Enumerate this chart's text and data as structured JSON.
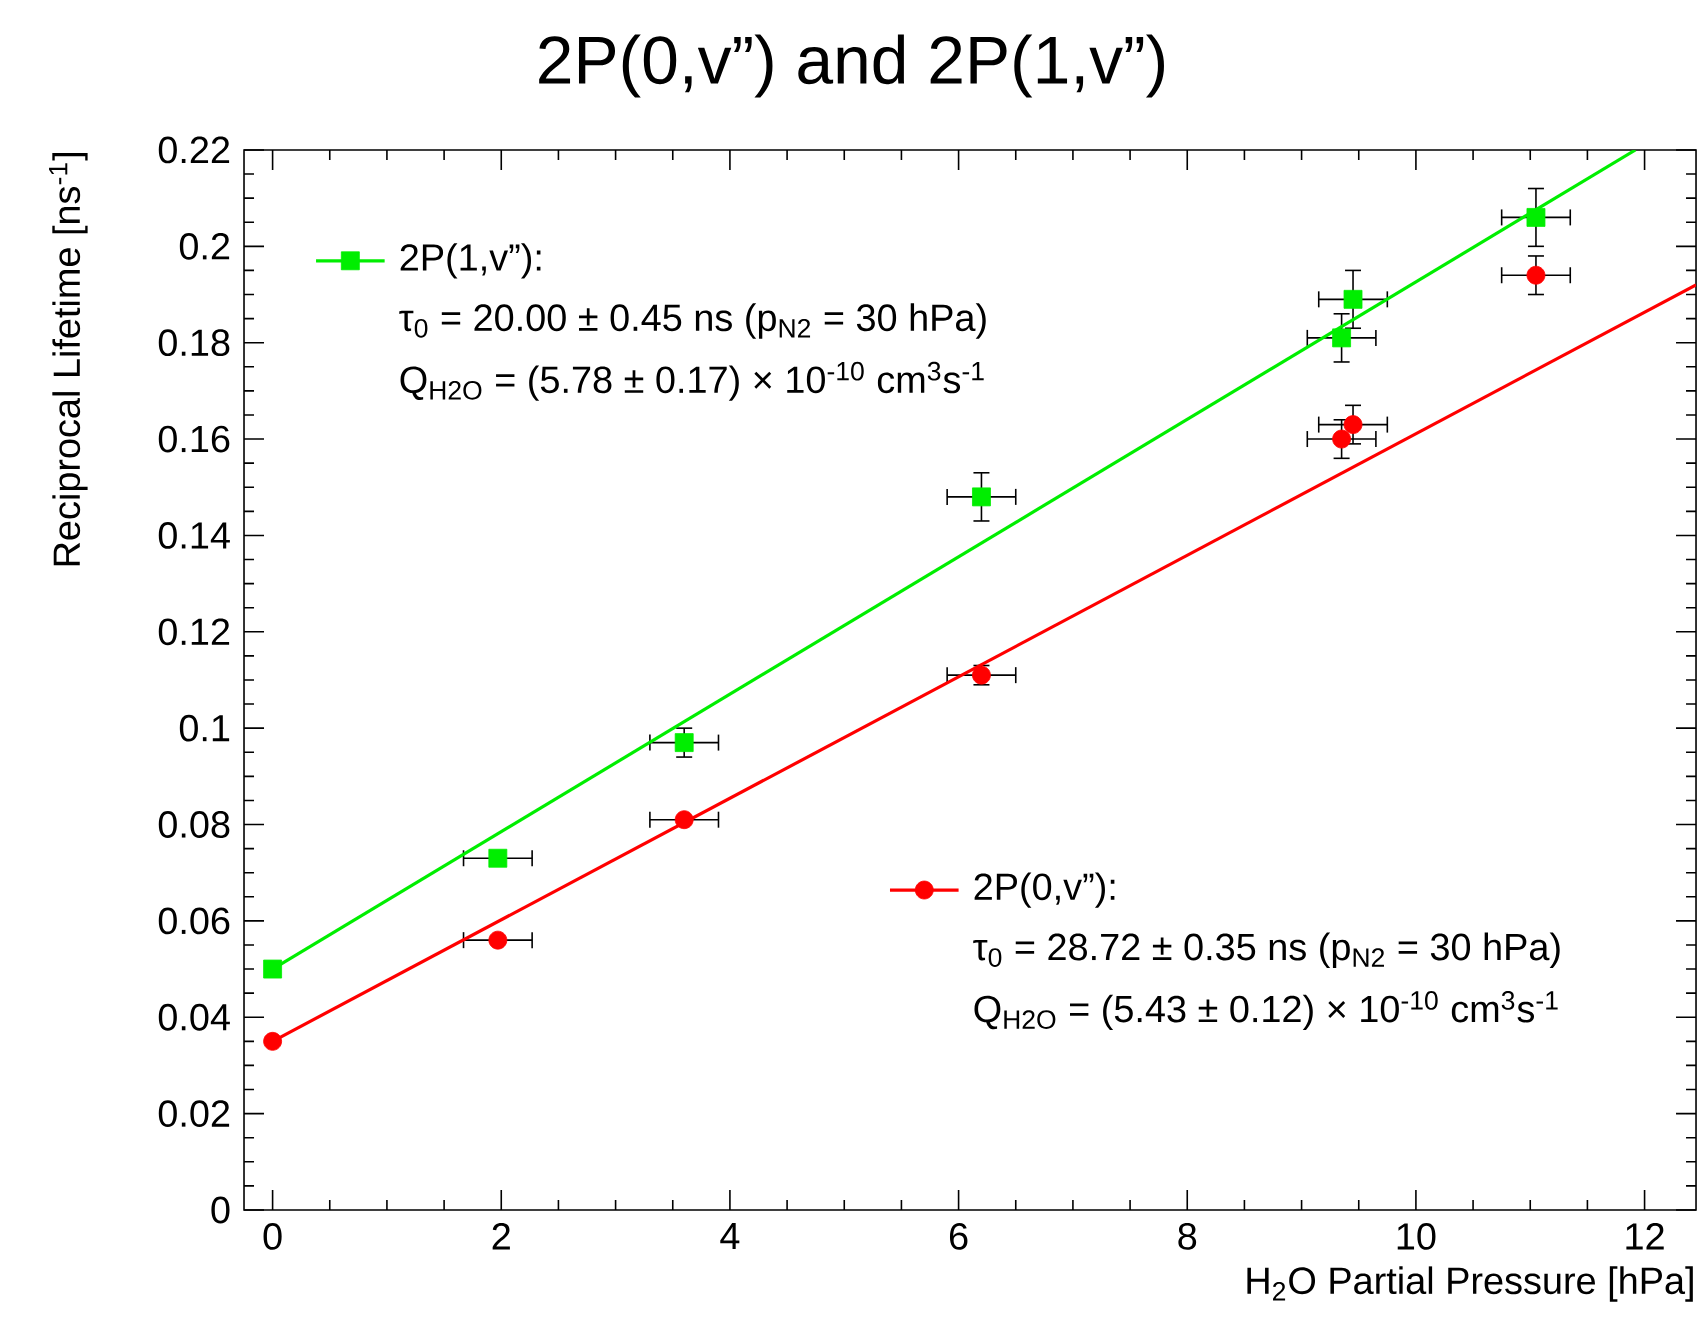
{
  "chart_data": {
    "type": "scatter",
    "title": "2P(0,v”) and 2P(1,v”)",
    "legend": "top left",
    "xlabel": "H$_{2}$O Partial Pressure [hPa]",
    "ylabel": "Reciprocal Lifetime [ns$^{-1}$]",
    "xlim": [
      -0.25,
      12.45
    ],
    "ylim": [
      0,
      0.22
    ],
    "xticks": [
      0,
      2,
      4,
      6,
      8,
      10,
      12
    ],
    "yticks": [
      0,
      0.02,
      0.04,
      0.06,
      0.08,
      0.1,
      0.12,
      0.14,
      0.16,
      0.18,
      0.2,
      0.22
    ],
    "annotations": [
      "τ$_{0}$ = 20.00 ± 0.45 ns (p$_{N2}$ = 30 hPa)",
      "Q$_{H2O}$ = (5.78 ± 0.17) × 10$^{-10}$ cm$^{3}$s$^{-1}$",
      "τ$_{0}$ = 28.72 ± 0.35 ns (p$_{N2}$ = 30 hPa)",
      "Q$_{H2O}$ = (5.43 ± 0.12) × 10$^{-10}$ cm$^{3}$s$^{-1}$"
    ],
    "series": [
      {
        "name": "2P(0,v”):",
        "marker": "circle",
        "color": "#ff0000",
        "x": [
          0,
          1.97,
          3.6,
          6.2,
          9.35,
          9.45,
          11.05
        ],
        "values": [
          0.035,
          0.056,
          0.081,
          0.111,
          0.16,
          0.163,
          0.194
        ],
        "errors": [
          null,
          null,
          null,
          0.002,
          0.004,
          0.004,
          0.004
        ],
        "xerrors": [
          null,
          0.3,
          0.3,
          0.3,
          0.3,
          0.3,
          0.3
        ]
      },
      {
        "name": "2P(1,v”):",
        "marker": "square",
        "color": "#00ee00",
        "x": [
          0,
          1.97,
          3.6,
          6.2,
          9.35,
          9.45,
          11.05
        ],
        "values": [
          0.05,
          0.073,
          0.097,
          0.148,
          0.181,
          0.189,
          0.206
        ],
        "errors": [
          null,
          null,
          0.003,
          0.005,
          0.005,
          0.006,
          0.006
        ],
        "xerrors": [
          null,
          0.3,
          0.3,
          0.3,
          0.3,
          0.3,
          0.3
        ]
      },
      {
        "type": "line",
        "marker": "none",
        "color": "#ff0000",
        "x": [
          0,
          12.45
        ],
        "values": [
          0.035,
          0.192
        ]
      },
      {
        "type": "line",
        "marker": "none",
        "color": "#00ee00",
        "x": [
          0,
          11.92
        ],
        "values": [
          0.05,
          0.22
        ]
      }
    ]
  }
}
